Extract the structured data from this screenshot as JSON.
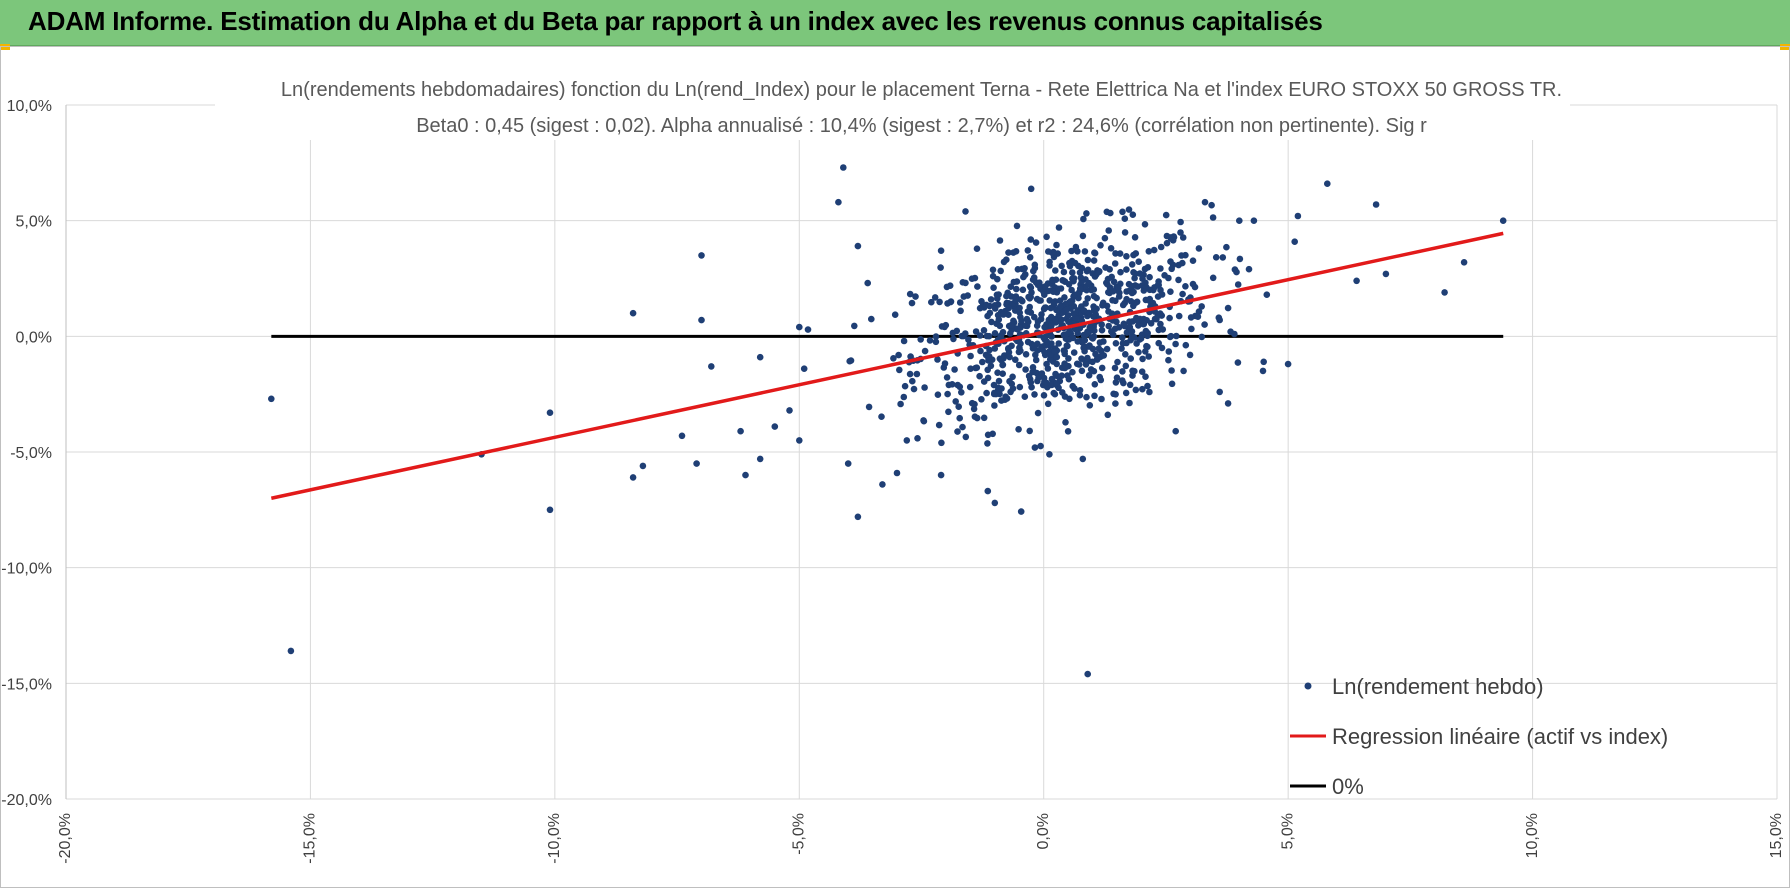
{
  "banner": {
    "title": "ADAM Informe. Estimation du Alpha et du Beta par rapport à un index avec les revenus connus capitalisés"
  },
  "colors": {
    "banner": "#7cc67b",
    "points": "#1f3f75",
    "regression": "#e21a1a",
    "zero_line": "#000000",
    "grid": "#d9d9d9"
  },
  "chart_data": {
    "type": "scatter",
    "title": "Ln(rendements hebdomadaires) fonction du Ln(rend_Index) pour le placement Terna - Rete Elettrica Na et l'index EURO STOXX 50 GROSS TR.",
    "subtitle": "Beta0 : 0,45 (sigest : 0,02).  Alpha annualisé : 10,4% (sigest : 2,7%) et r2 : 24,6% (corrélation non pertinente). Sig r",
    "xlim": [
      -20,
      15
    ],
    "ylim": [
      -20,
      10
    ],
    "x_ticks": [
      -20,
      -15,
      -10,
      -5,
      0,
      5,
      10,
      15
    ],
    "y_ticks": [
      10,
      5,
      0,
      -5,
      -10,
      -15,
      -20
    ],
    "x_tick_labels": [
      "-20,0%",
      "-15,0%",
      "-10,0%",
      "-5,0%",
      "0,0%",
      "5,0%",
      "10,0%",
      "15,0%"
    ],
    "y_tick_labels": [
      "10,0%",
      "5,0%",
      "0,0%",
      "-5,0%",
      "-10,0%",
      "-15,0%",
      "-20,0%"
    ],
    "grid": true,
    "legend_position": "bottom-right",
    "legend": [
      {
        "label": "Ln(rendement hebdo)",
        "kind": "marker"
      },
      {
        "label": "Regression linéaire (actif vs index)",
        "kind": "line-red"
      },
      {
        "label": "0%",
        "kind": "line-black"
      }
    ],
    "regression": {
      "x": [
        -15.8,
        9.4
      ],
      "y": [
        -7.0,
        4.45
      ]
    },
    "zero_line": {
      "x": [
        -15.8,
        9.4
      ],
      "y": [
        0,
        0
      ]
    },
    "cluster": {
      "center_x": 0.4,
      "center_y": 0.45,
      "sd_x": 1.5,
      "sd_y": 1.9,
      "count": 900
    },
    "points": [
      [
        -15.8,
        -2.7
      ],
      [
        -15.4,
        -13.6
      ],
      [
        -11.5,
        -5.1
      ],
      [
        -10.1,
        -3.3
      ],
      [
        -10.1,
        -7.5
      ],
      [
        -8.4,
        1.0
      ],
      [
        -8.4,
        -6.1
      ],
      [
        -8.2,
        -5.6
      ],
      [
        -7.4,
        -4.3
      ],
      [
        -7.1,
        -5.5
      ],
      [
        -7.0,
        3.5
      ],
      [
        -7.0,
        0.7
      ],
      [
        -6.8,
        -1.3
      ],
      [
        -6.2,
        -4.1
      ],
      [
        -6.1,
        -6.0
      ],
      [
        -5.8,
        -0.9
      ],
      [
        -5.8,
        -5.3
      ],
      [
        -5.5,
        -3.9
      ],
      [
        -5.2,
        -3.2
      ],
      [
        -5.0,
        -4.5
      ],
      [
        -5.0,
        0.4
      ],
      [
        -4.9,
        -1.4
      ],
      [
        -4.2,
        5.8
      ],
      [
        -4.1,
        7.3
      ],
      [
        -4.0,
        -5.5
      ],
      [
        -3.8,
        -7.8
      ],
      [
        -3.8,
        3.9
      ],
      [
        -3.6,
        2.3
      ],
      [
        -3.3,
        -6.4
      ],
      [
        -2.8,
        -4.5
      ],
      [
        -2.1,
        3.7
      ],
      [
        -2.1,
        -6.0
      ],
      [
        -1.6,
        5.4
      ],
      [
        -1.0,
        -7.2
      ],
      [
        0.9,
        -14.6
      ],
      [
        0.8,
        -5.3
      ],
      [
        2.7,
        -4.1
      ],
      [
        3.3,
        5.8
      ],
      [
        4.0,
        5.0
      ],
      [
        4.3,
        5.0
      ],
      [
        5.0,
        -1.2
      ],
      [
        5.2,
        5.2
      ],
      [
        5.8,
        6.6
      ],
      [
        6.4,
        2.4
      ],
      [
        6.8,
        5.7
      ],
      [
        7.0,
        2.7
      ],
      [
        8.2,
        1.9
      ],
      [
        8.6,
        3.2
      ],
      [
        9.4,
        5.0
      ],
      [
        3.9,
        0.1
      ],
      [
        4.5,
        -1.1
      ],
      [
        3.6,
        -2.4
      ],
      [
        4.2,
        2.9
      ]
    ]
  }
}
